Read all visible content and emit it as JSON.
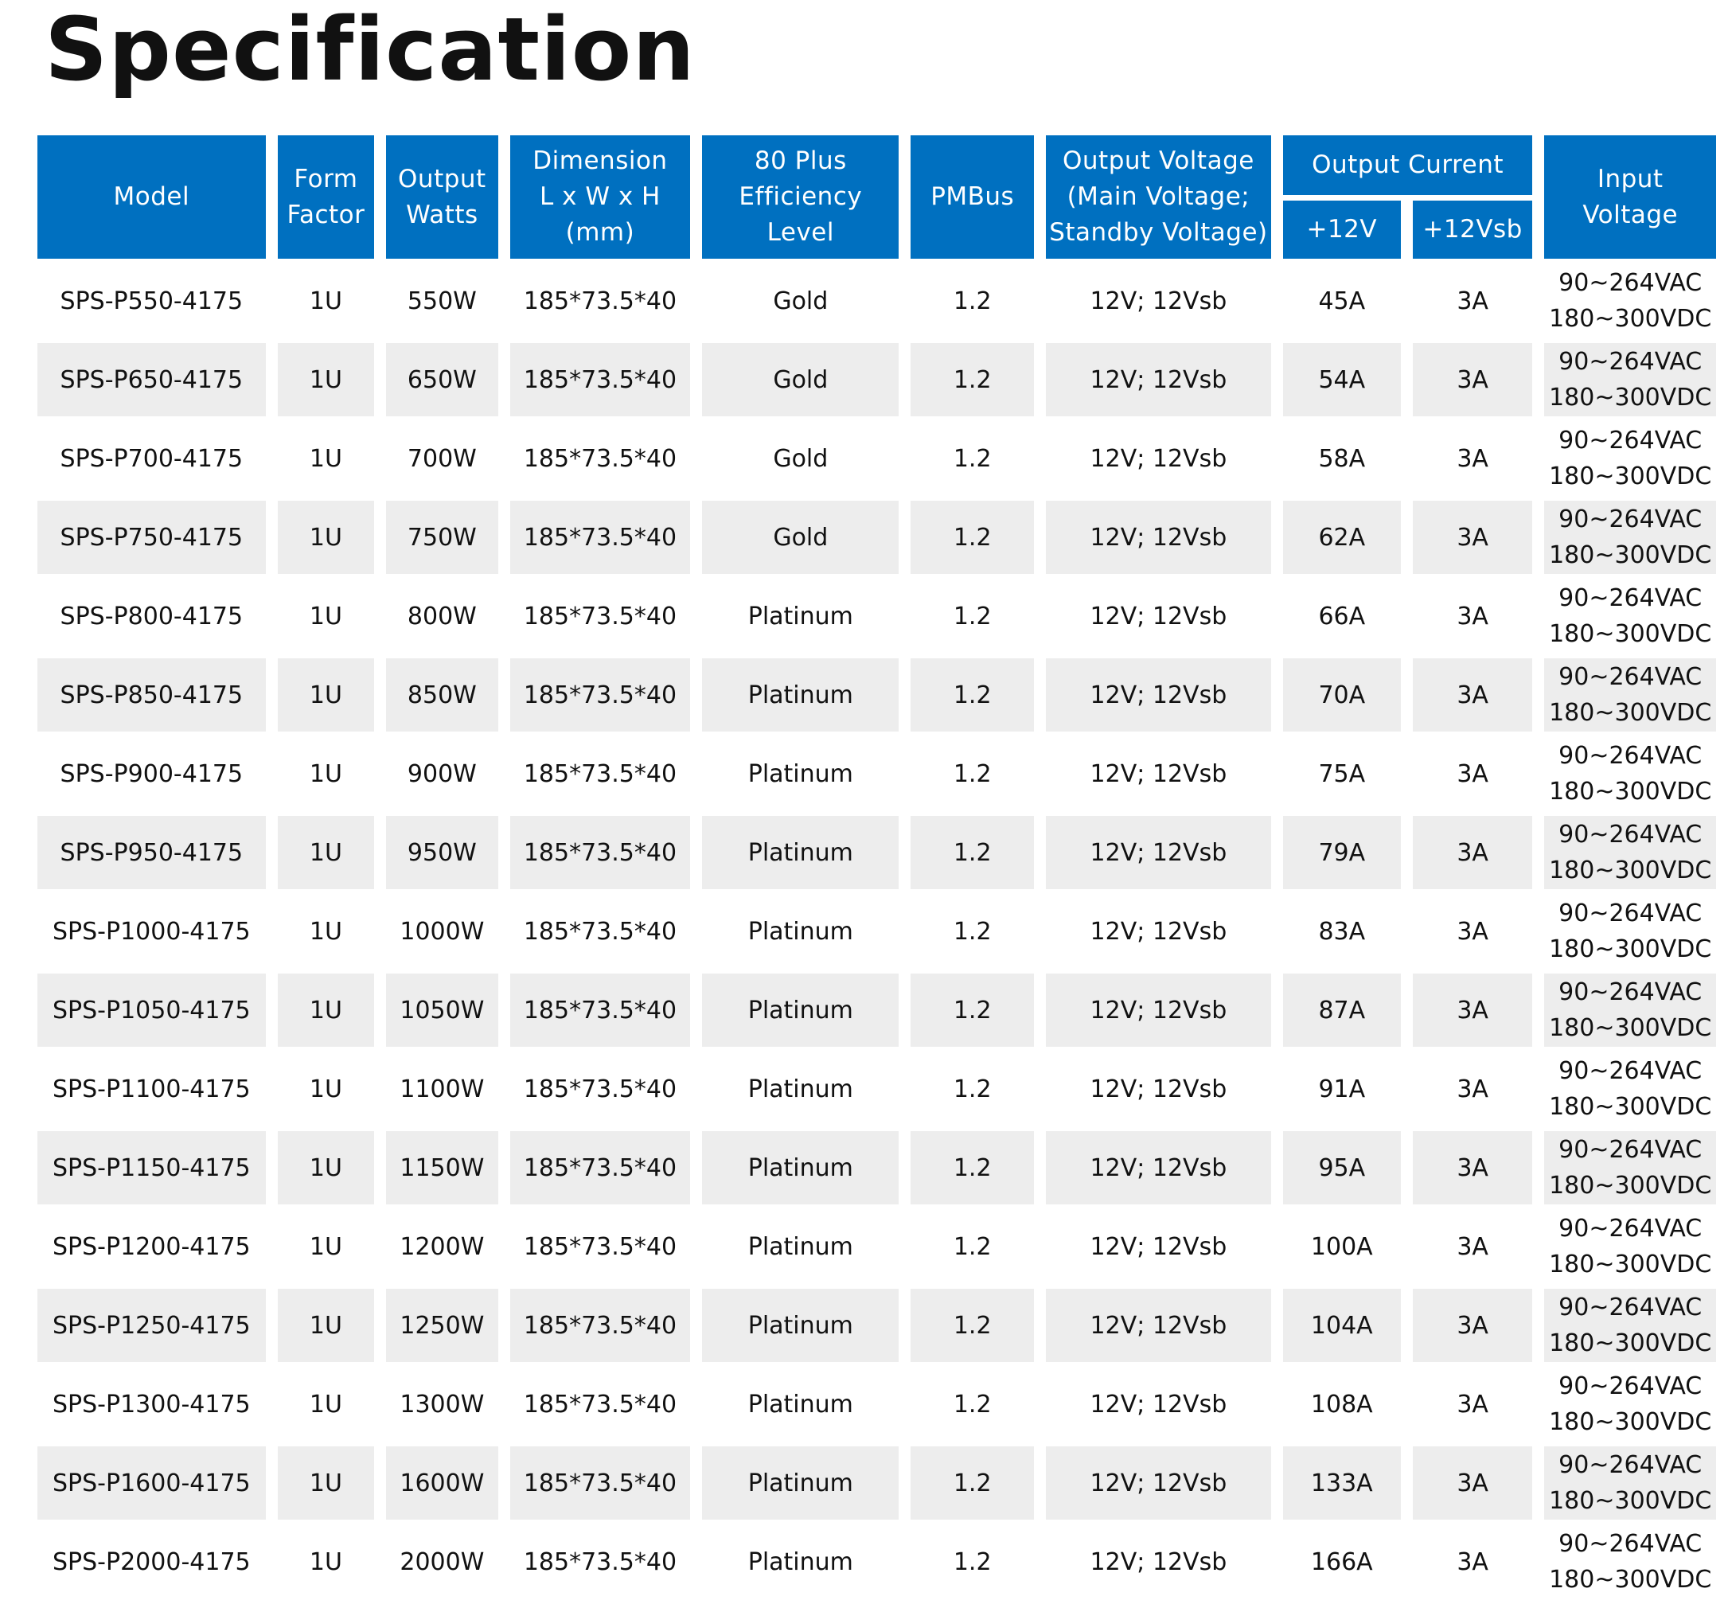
{
  "title": "Specification",
  "colors": {
    "header_bg": "#0070c0",
    "header_text": "#ffffff",
    "stripe_bg": "#ededed"
  },
  "headers": {
    "model": "Model",
    "form_factor": [
      "Form",
      "Factor"
    ],
    "output_watts": [
      "Output",
      "Watts"
    ],
    "dimension": [
      "Dimension",
      "L x W x H",
      "(mm)"
    ],
    "efficiency": [
      "80 Plus",
      "Efficiency",
      "Level"
    ],
    "pmbus": "PMBus",
    "output_voltage": [
      "Output Voltage",
      "(Main Voltage;",
      "Standby Voltage)"
    ],
    "output_current": "Output Current",
    "current_12v": "+12V",
    "current_12vsb": "+12Vsb",
    "input_voltage": [
      "Input",
      "Voltage"
    ]
  },
  "rows": [
    {
      "model": "SPS-P550-4175",
      "form": "1U",
      "watts": "550W",
      "dimension": "185*73.5*40",
      "efficiency": "Gold",
      "pmbus": "1.2",
      "voltage": "12V; 12Vsb",
      "i12v": "45A",
      "i12vsb": "3A",
      "input_ac": "90~264VAC",
      "input_dc": "180~300VDC"
    },
    {
      "model": "SPS-P650-4175",
      "form": "1U",
      "watts": "650W",
      "dimension": "185*73.5*40",
      "efficiency": "Gold",
      "pmbus": "1.2",
      "voltage": "12V; 12Vsb",
      "i12v": "54A",
      "i12vsb": "3A",
      "input_ac": "90~264VAC",
      "input_dc": "180~300VDC"
    },
    {
      "model": "SPS-P700-4175",
      "form": "1U",
      "watts": "700W",
      "dimension": "185*73.5*40",
      "efficiency": "Gold",
      "pmbus": "1.2",
      "voltage": "12V; 12Vsb",
      "i12v": "58A",
      "i12vsb": "3A",
      "input_ac": "90~264VAC",
      "input_dc": "180~300VDC"
    },
    {
      "model": "SPS-P750-4175",
      "form": "1U",
      "watts": "750W",
      "dimension": "185*73.5*40",
      "efficiency": "Gold",
      "pmbus": "1.2",
      "voltage": "12V; 12Vsb",
      "i12v": "62A",
      "i12vsb": "3A",
      "input_ac": "90~264VAC",
      "input_dc": "180~300VDC"
    },
    {
      "model": "SPS-P800-4175",
      "form": "1U",
      "watts": "800W",
      "dimension": "185*73.5*40",
      "efficiency": "Platinum",
      "pmbus": "1.2",
      "voltage": "12V; 12Vsb",
      "i12v": "66A",
      "i12vsb": "3A",
      "input_ac": "90~264VAC",
      "input_dc": "180~300VDC"
    },
    {
      "model": "SPS-P850-4175",
      "form": "1U",
      "watts": "850W",
      "dimension": "185*73.5*40",
      "efficiency": "Platinum",
      "pmbus": "1.2",
      "voltage": "12V; 12Vsb",
      "i12v": "70A",
      "i12vsb": "3A",
      "input_ac": "90~264VAC",
      "input_dc": "180~300VDC"
    },
    {
      "model": "SPS-P900-4175",
      "form": "1U",
      "watts": "900W",
      "dimension": "185*73.5*40",
      "efficiency": "Platinum",
      "pmbus": "1.2",
      "voltage": "12V; 12Vsb",
      "i12v": "75A",
      "i12vsb": "3A",
      "input_ac": "90~264VAC",
      "input_dc": "180~300VDC"
    },
    {
      "model": "SPS-P950-4175",
      "form": "1U",
      "watts": "950W",
      "dimension": "185*73.5*40",
      "efficiency": "Platinum",
      "pmbus": "1.2",
      "voltage": "12V; 12Vsb",
      "i12v": "79A",
      "i12vsb": "3A",
      "input_ac": "90~264VAC",
      "input_dc": "180~300VDC"
    },
    {
      "model": "SPS-P1000-4175",
      "form": "1U",
      "watts": "1000W",
      "dimension": "185*73.5*40",
      "efficiency": "Platinum",
      "pmbus": "1.2",
      "voltage": "12V; 12Vsb",
      "i12v": "83A",
      "i12vsb": "3A",
      "input_ac": "90~264VAC",
      "input_dc": "180~300VDC"
    },
    {
      "model": "SPS-P1050-4175",
      "form": "1U",
      "watts": "1050W",
      "dimension": "185*73.5*40",
      "efficiency": "Platinum",
      "pmbus": "1.2",
      "voltage": "12V; 12Vsb",
      "i12v": "87A",
      "i12vsb": "3A",
      "input_ac": "90~264VAC",
      "input_dc": "180~300VDC"
    },
    {
      "model": "SPS-P1100-4175",
      "form": "1U",
      "watts": "1100W",
      "dimension": "185*73.5*40",
      "efficiency": "Platinum",
      "pmbus": "1.2",
      "voltage": "12V; 12Vsb",
      "i12v": "91A",
      "i12vsb": "3A",
      "input_ac": "90~264VAC",
      "input_dc": "180~300VDC"
    },
    {
      "model": "SPS-P1150-4175",
      "form": "1U",
      "watts": "1150W",
      "dimension": "185*73.5*40",
      "efficiency": "Platinum",
      "pmbus": "1.2",
      "voltage": "12V; 12Vsb",
      "i12v": "95A",
      "i12vsb": "3A",
      "input_ac": "90~264VAC",
      "input_dc": "180~300VDC"
    },
    {
      "model": "SPS-P1200-4175",
      "form": "1U",
      "watts": "1200W",
      "dimension": "185*73.5*40",
      "efficiency": "Platinum",
      "pmbus": "1.2",
      "voltage": "12V; 12Vsb",
      "i12v": "100A",
      "i12vsb": "3A",
      "input_ac": "90~264VAC",
      "input_dc": "180~300VDC"
    },
    {
      "model": "SPS-P1250-4175",
      "form": "1U",
      "watts": "1250W",
      "dimension": "185*73.5*40",
      "efficiency": "Platinum",
      "pmbus": "1.2",
      "voltage": "12V; 12Vsb",
      "i12v": "104A",
      "i12vsb": "3A",
      "input_ac": "90~264VAC",
      "input_dc": "180~300VDC"
    },
    {
      "model": "SPS-P1300-4175",
      "form": "1U",
      "watts": "1300W",
      "dimension": "185*73.5*40",
      "efficiency": "Platinum",
      "pmbus": "1.2",
      "voltage": "12V; 12Vsb",
      "i12v": "108A",
      "i12vsb": "3A",
      "input_ac": "90~264VAC",
      "input_dc": "180~300VDC"
    },
    {
      "model": "SPS-P1600-4175",
      "form": "1U",
      "watts": "1600W",
      "dimension": "185*73.5*40",
      "efficiency": "Platinum",
      "pmbus": "1.2",
      "voltage": "12V; 12Vsb",
      "i12v": "133A",
      "i12vsb": "3A",
      "input_ac": "90~264VAC",
      "input_dc": "180~300VDC"
    },
    {
      "model": "SPS-P2000-4175",
      "form": "1U",
      "watts": "2000W",
      "dimension": "185*73.5*40",
      "efficiency": "Platinum",
      "pmbus": "1.2",
      "voltage": "12V; 12Vsb",
      "i12v": "166A",
      "i12vsb": "3A",
      "input_ac": "90~264VAC",
      "input_dc": "180~300VDC"
    }
  ]
}
